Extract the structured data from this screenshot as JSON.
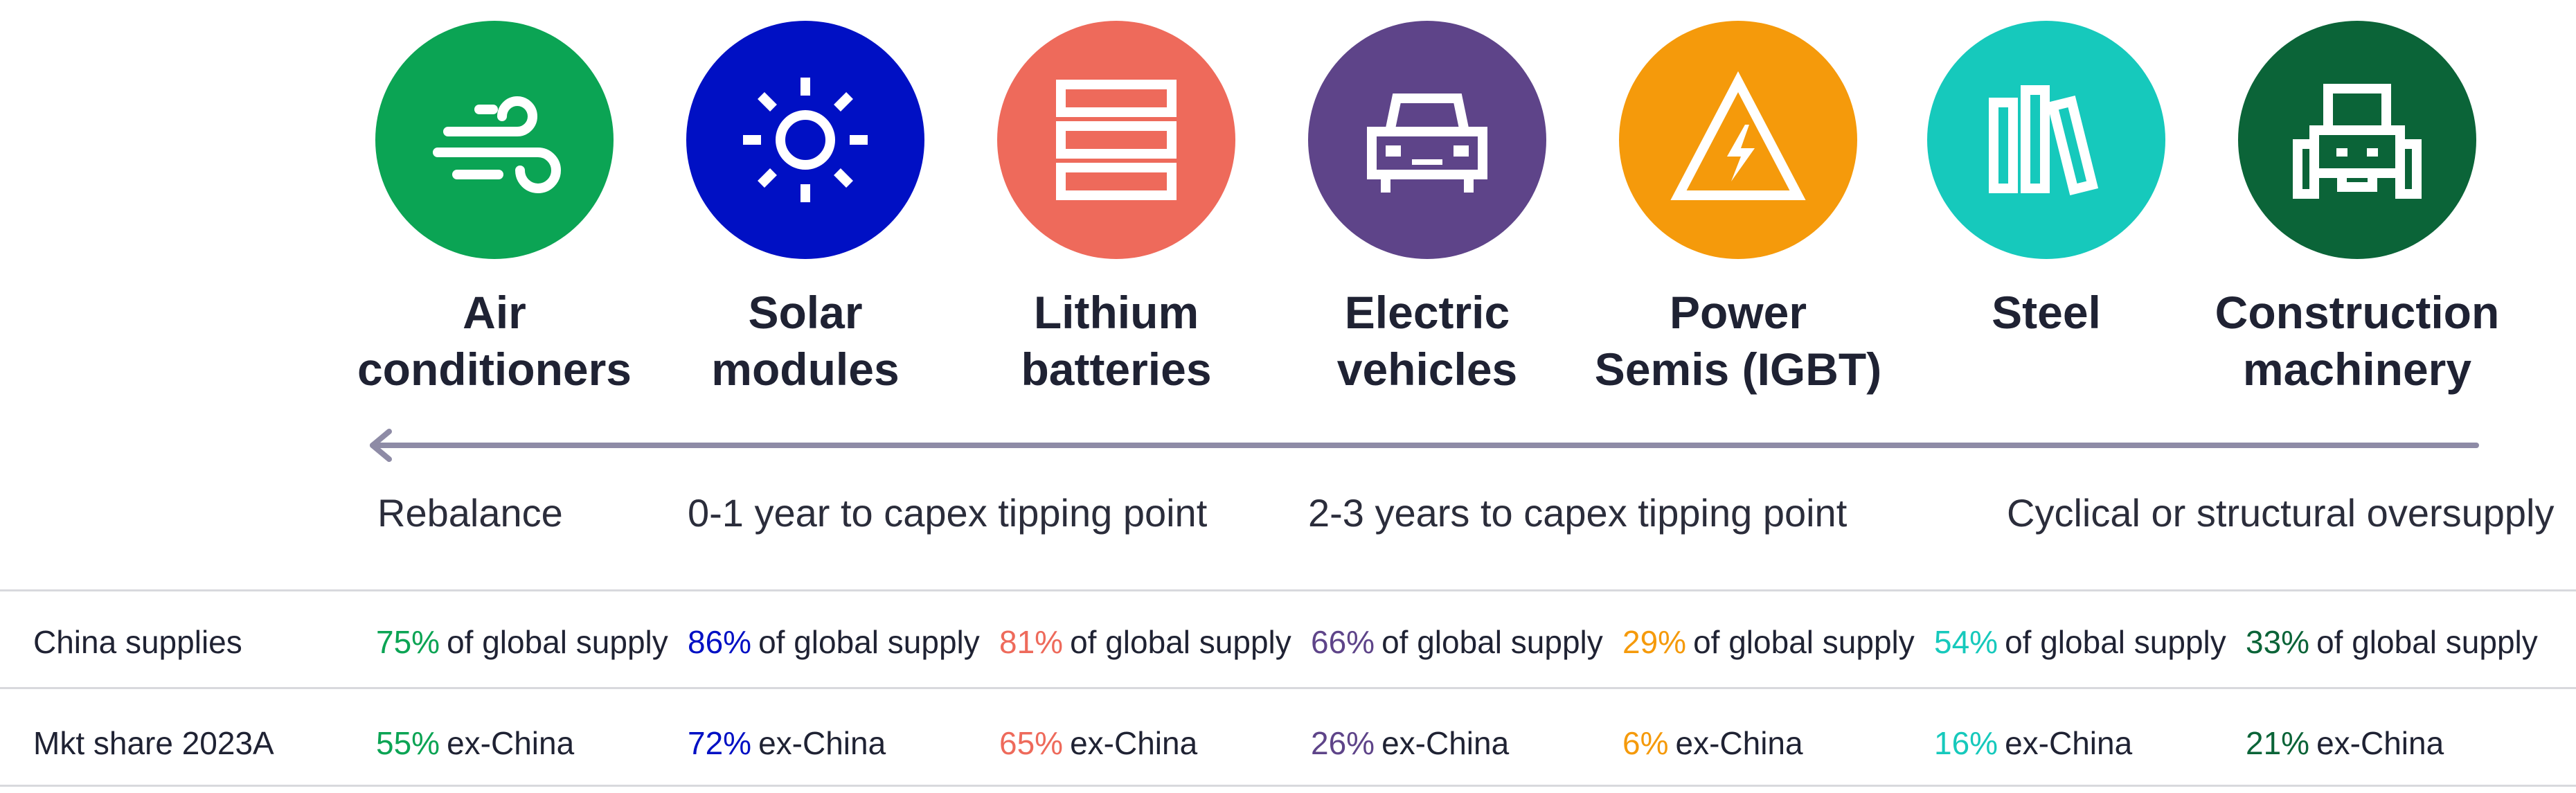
{
  "categories": [
    {
      "key": "ac",
      "name": "Air conditioners",
      "line1": "Air",
      "line2": "conditioners",
      "color": "#0BA454",
      "icon": "wind-icon",
      "china_supply_pct": "75%",
      "mkt_share_pct": "55%"
    },
    {
      "key": "solar",
      "name": "Solar modules",
      "line1": "Solar",
      "line2": "modules",
      "color": "#0010C4",
      "icon": "sun-icon",
      "china_supply_pct": "86%",
      "mkt_share_pct": "72%"
    },
    {
      "key": "lithium",
      "name": "Lithium batteries",
      "line1": "Lithium",
      "line2": "batteries",
      "color": "#EE6A5B",
      "icon": "battery-stack-icon",
      "china_supply_pct": "81%",
      "mkt_share_pct": "65%"
    },
    {
      "key": "ev",
      "name": "Electric vehicles",
      "line1": "Electric",
      "line2": "vehicles",
      "color": "#5E4489",
      "icon": "car-icon",
      "china_supply_pct": "66%",
      "mkt_share_pct": "26%"
    },
    {
      "key": "semis",
      "name": "Power Semis (IGBT)",
      "line1": "Power",
      "line2": "Semis (IGBT)",
      "color": "#F59A0B",
      "icon": "high-voltage-icon",
      "china_supply_pct": "29%",
      "mkt_share_pct": "6%"
    },
    {
      "key": "steel",
      "name": "Steel",
      "line1": "Steel",
      "line2": "",
      "color": "#16C9BC",
      "icon": "steel-bars-icon",
      "china_supply_pct": "54%",
      "mkt_share_pct": "16%"
    },
    {
      "key": "construction",
      "name": "Construction machinery",
      "line1": "Construction",
      "line2": "machinery",
      "color": "#0B6438",
      "icon": "tractor-icon",
      "china_supply_pct": "33%",
      "mkt_share_pct": "21%"
    }
  ],
  "stages": [
    "Rebalance",
    "0-1 year to capex tipping point",
    "2-3 years to capex tipping point",
    "Cyclical or structural oversupply"
  ],
  "rows": {
    "china_supplies": {
      "label": "China supplies",
      "suffix": "of global supply"
    },
    "mkt_share": {
      "label": "Mkt share 2023A",
      "suffix": "ex-China"
    }
  },
  "arrow_color": "#8E8BA6"
}
